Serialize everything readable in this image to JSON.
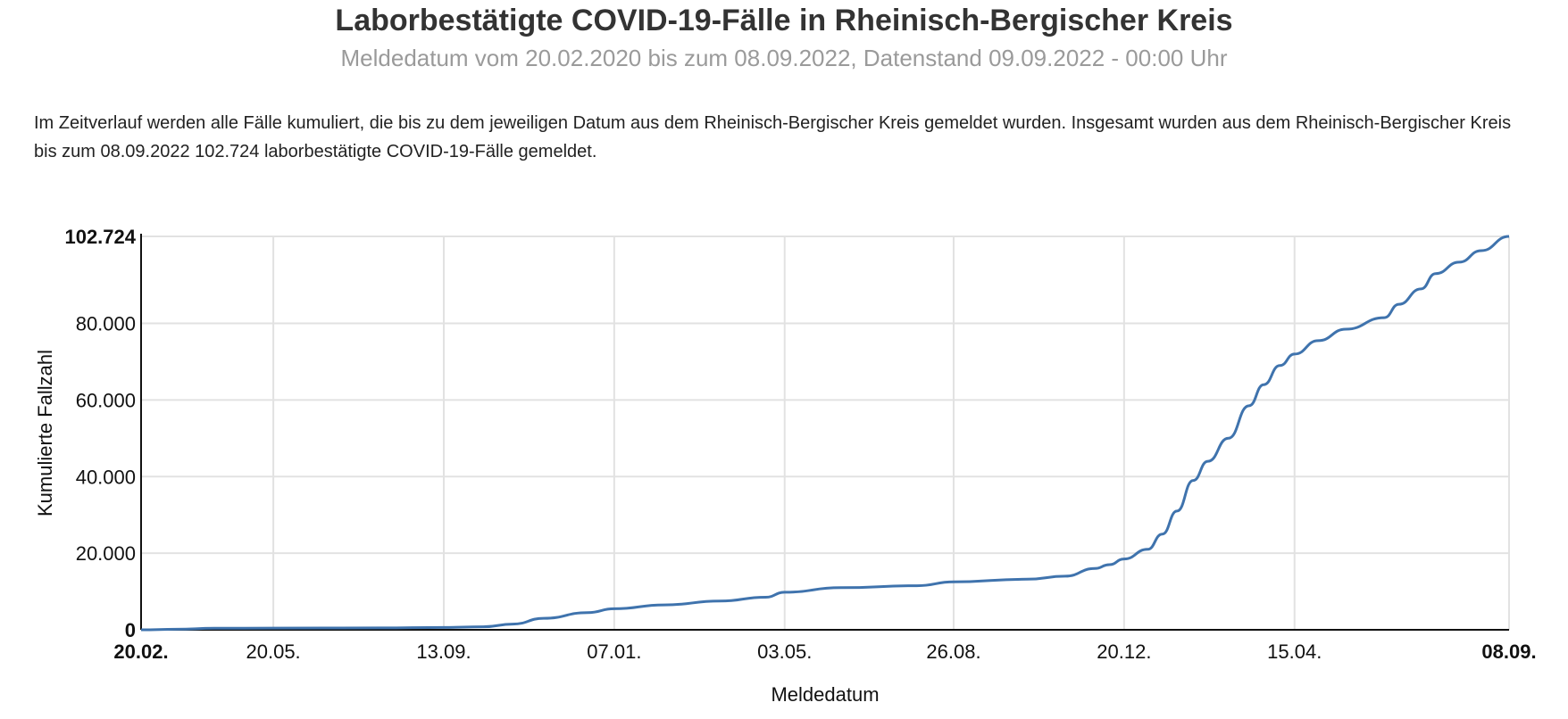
{
  "chart_data": {
    "type": "line",
    "title": "Laborbestätigte COVID-19-Fälle in Rheinisch-Bergischer Kreis",
    "subtitle": "Meldedatum vom 20.02.2020 bis zum 08.09.2022, Datenstand 09.09.2022 - 00:00 Uhr",
    "description": "Im Zeitverlauf werden alle Fälle kumuliert, die bis zu dem jeweiligen Datum aus dem Rheinisch-Bergischer Kreis gemeldet wurden. Insgesamt wurden aus dem Rheinisch-Bergischer Kreis bis zum 08.09.2022 102.724 laborbestätigte COVID-19-Fälle gemeldet.",
    "xlabel": "Meldedatum",
    "ylabel": "Kumulierte Fallzahl",
    "x_range": [
      "2020-02-20",
      "2022-09-08"
    ],
    "ylim": [
      0,
      102724
    ],
    "grid": true,
    "line_color": "#3f73ad",
    "x_ticks": [
      {
        "date": "2020-02-20",
        "label": "20.02.",
        "bold": true
      },
      {
        "date": "2020-05-20",
        "label": "20.05.",
        "bold": false
      },
      {
        "date": "2020-09-13",
        "label": "13.09.",
        "bold": false
      },
      {
        "date": "2021-01-07",
        "label": "07.01.",
        "bold": false
      },
      {
        "date": "2021-05-03",
        "label": "03.05.",
        "bold": false
      },
      {
        "date": "2021-08-26",
        "label": "26.08.",
        "bold": false
      },
      {
        "date": "2021-12-20",
        "label": "20.12.",
        "bold": false
      },
      {
        "date": "2022-04-15",
        "label": "15.04.",
        "bold": false
      },
      {
        "date": "2022-09-08",
        "label": "08.09.",
        "bold": true
      }
    ],
    "y_ticks": [
      {
        "value": 0,
        "label": "0",
        "bold": true
      },
      {
        "value": 20000,
        "label": "20.000",
        "bold": false
      },
      {
        "value": 40000,
        "label": "40.000",
        "bold": false
      },
      {
        "value": 60000,
        "label": "60.000",
        "bold": false
      },
      {
        "value": 80000,
        "label": "80.000",
        "bold": false
      },
      {
        "value": 102724,
        "label": "102.724",
        "bold": true
      }
    ],
    "series": [
      {
        "x": [
          "2020-02-20",
          "2020-03-15",
          "2020-04-10",
          "2020-05-20",
          "2020-08-01",
          "2020-09-13",
          "2020-10-10",
          "2020-10-30",
          "2020-11-20",
          "2020-12-20",
          "2021-01-07",
          "2021-02-10",
          "2021-03-20",
          "2021-04-20",
          "2021-05-03",
          "2021-06-10",
          "2021-08-01",
          "2021-08-26",
          "2021-10-15",
          "2021-11-10",
          "2021-11-30",
          "2021-12-10",
          "2021-12-20",
          "2022-01-05",
          "2022-01-15",
          "2022-01-25",
          "2022-02-05",
          "2022-02-15",
          "2022-03-01",
          "2022-03-15",
          "2022-03-25",
          "2022-04-05",
          "2022-04-15",
          "2022-05-01",
          "2022-05-20",
          "2022-06-15",
          "2022-06-25",
          "2022-07-10",
          "2022-07-20",
          "2022-08-05",
          "2022-08-20",
          "2022-09-08"
        ],
        "y": [
          0,
          150,
          400,
          450,
          500,
          600,
          800,
          1500,
          3000,
          4500,
          5500,
          6500,
          7500,
          8500,
          9800,
          11000,
          11500,
          12500,
          13200,
          14000,
          16000,
          17000,
          18500,
          21000,
          25000,
          31000,
          39000,
          44000,
          50000,
          58500,
          64000,
          69000,
          72000,
          75500,
          78500,
          81500,
          85000,
          89000,
          93000,
          96000,
          99000,
          102724
        ]
      }
    ]
  }
}
